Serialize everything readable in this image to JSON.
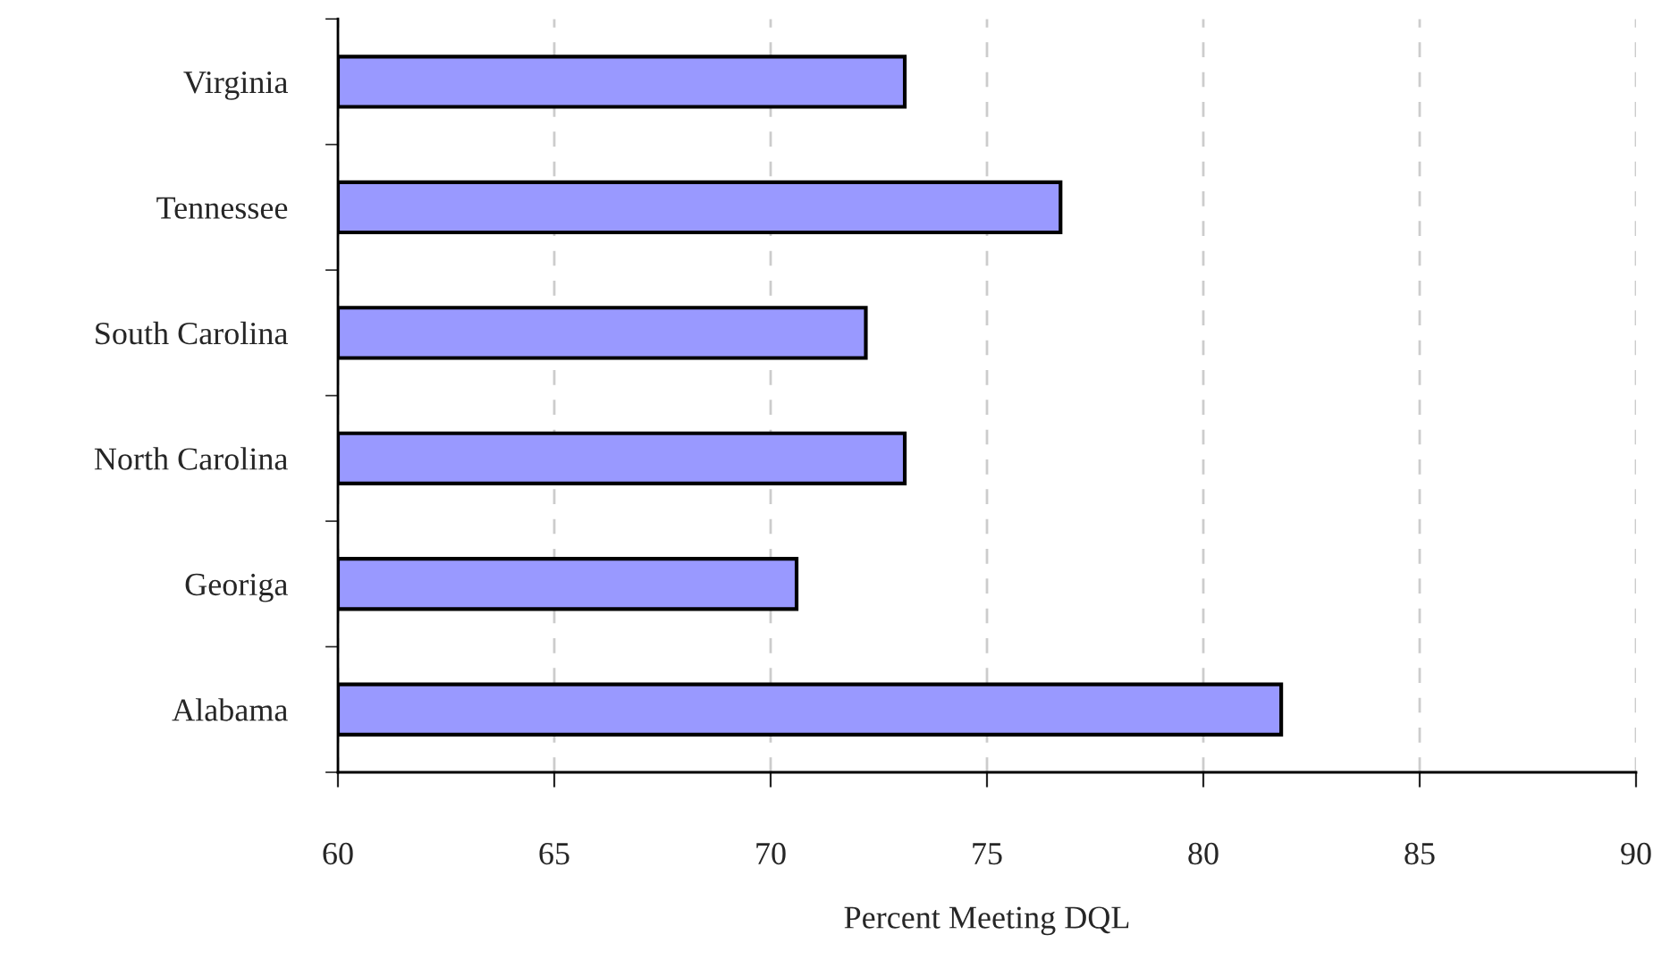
{
  "chart_data": {
    "type": "bar",
    "orientation": "horizontal",
    "xlabel": "Percent Meeting DQL",
    "categories": [
      "Virginia",
      "Tennessee",
      "South Carolina",
      "North Carolina",
      "Georiga",
      "Alabama"
    ],
    "values": [
      73.1,
      76.7,
      72.2,
      73.1,
      70.6,
      81.8
    ],
    "color": "#9999ff",
    "xlim": [
      60,
      90
    ],
    "xticks": [
      60,
      65,
      70,
      75,
      80,
      85,
      90
    ],
    "grid": "x",
    "legend": false
  }
}
